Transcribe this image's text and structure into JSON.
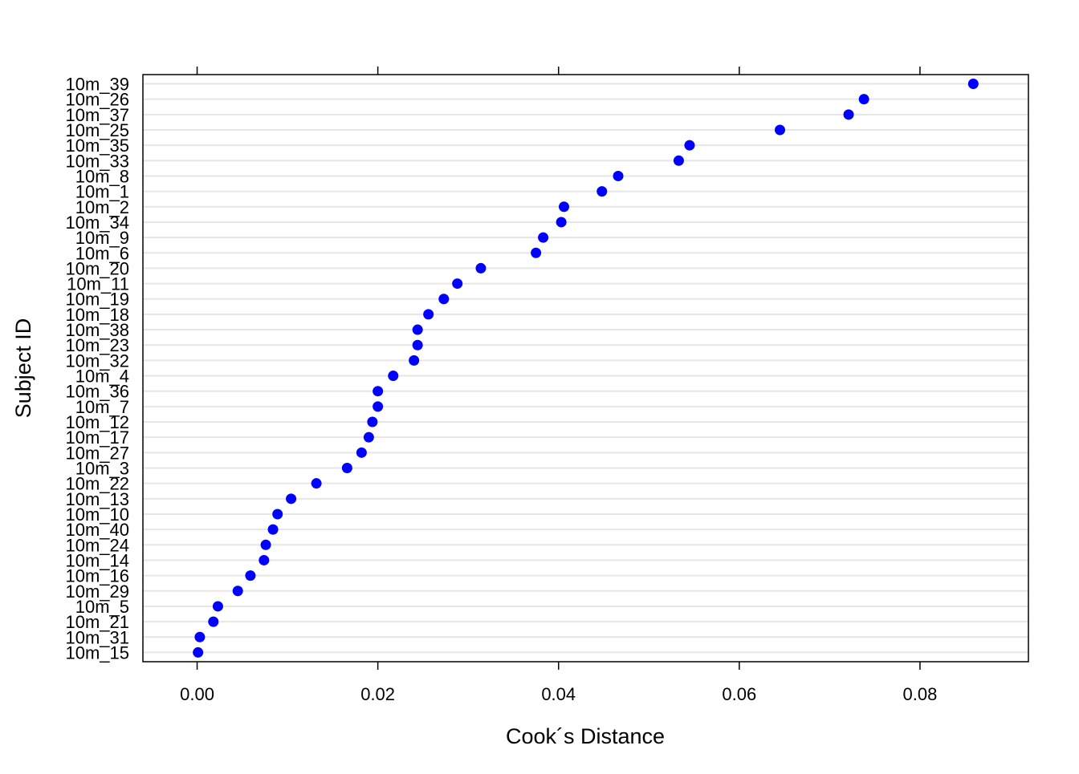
{
  "chart_data": {
    "type": "scatter",
    "title": "",
    "xlabel": "Cook´s Distance",
    "ylabel": "Subject ID",
    "xlim": [
      -0.006,
      0.092
    ],
    "x_ticks": [
      0.0,
      0.02,
      0.04,
      0.06,
      0.08
    ],
    "x_tick_labels": [
      "0.00",
      "0.02",
      "0.04",
      "0.06",
      "0.08"
    ],
    "grid": true,
    "point_color": "#0000ff",
    "grid_color": "#e6e6e6",
    "categories": [
      "10m_39",
      "10m_26",
      "10m_37",
      "10m_25",
      "10m_35",
      "10m_33",
      "10m_8",
      "10m_1",
      "10m_2",
      "10m_34",
      "10m_9",
      "10m_6",
      "10m_20",
      "10m_11",
      "10m_19",
      "10m_18",
      "10m_38",
      "10m_23",
      "10m_32",
      "10m_4",
      "10m_36",
      "10m_7",
      "10m_12",
      "10m_17",
      "10m_27",
      "10m_3",
      "10m_22",
      "10m_13",
      "10m_10",
      "10m_40",
      "10m_24",
      "10m_14",
      "10m_16",
      "10m_29",
      "10m_5",
      "10m_21",
      "10m_31",
      "10m_15"
    ],
    "values": [
      0.0859,
      0.0738,
      0.0721,
      0.0645,
      0.0545,
      0.0533,
      0.0466,
      0.0448,
      0.0406,
      0.0403,
      0.0383,
      0.0375,
      0.0314,
      0.0288,
      0.0273,
      0.0256,
      0.0244,
      0.0244,
      0.024,
      0.0217,
      0.02,
      0.02,
      0.0194,
      0.019,
      0.0182,
      0.0166,
      0.0132,
      0.0104,
      0.0089,
      0.0084,
      0.0076,
      0.0074,
      0.0059,
      0.0045,
      0.0023,
      0.0018,
      0.0003,
      0.0001
    ]
  }
}
